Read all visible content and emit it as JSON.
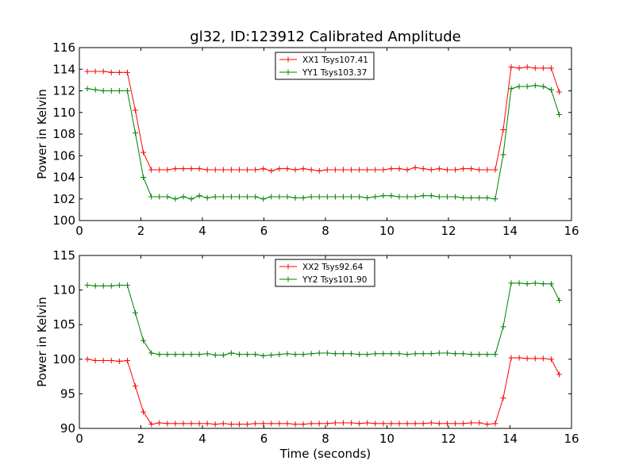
{
  "figure_title": "gl32, ID:123912 Calibrated Amplitude",
  "colors": {
    "xx": "#ff0000",
    "yy": "#008000"
  },
  "chart_data": [
    {
      "type": "line",
      "title": "gl32, ID:123912 Calibrated Amplitude",
      "xlabel": "",
      "ylabel": "Power in Kelvin",
      "xlim": [
        0,
        16
      ],
      "ylim": [
        100,
        116
      ],
      "xticks": [
        0,
        2,
        4,
        6,
        8,
        10,
        12,
        14,
        16
      ],
      "yticks": [
        100,
        102,
        104,
        106,
        108,
        110,
        112,
        114,
        116
      ],
      "grid": false,
      "legend_position": "top-center",
      "x": [
        0.26,
        0.52,
        0.78,
        1.04,
        1.3,
        1.56,
        1.82,
        2.08,
        2.34,
        2.6,
        2.86,
        3.12,
        3.38,
        3.64,
        3.9,
        4.16,
        4.42,
        4.68,
        4.94,
        5.2,
        5.46,
        5.72,
        5.98,
        6.24,
        6.5,
        6.76,
        7.02,
        7.28,
        7.54,
        7.8,
        8.06,
        8.32,
        8.58,
        8.84,
        9.1,
        9.36,
        9.62,
        9.88,
        10.14,
        10.4,
        10.66,
        10.92,
        11.18,
        11.44,
        11.7,
        11.96,
        12.22,
        12.48,
        12.74,
        13.0,
        13.26,
        13.52,
        13.78,
        14.04,
        14.3,
        14.56,
        14.82,
        15.08,
        15.34,
        15.6
      ],
      "series": [
        {
          "name": "XX1 Tsys107.41",
          "color": "#ff0000",
          "values": [
            113.8,
            113.8,
            113.8,
            113.7,
            113.7,
            113.7,
            110.2,
            106.3,
            104.7,
            104.7,
            104.7,
            104.8,
            104.8,
            104.8,
            104.8,
            104.7,
            104.7,
            104.7,
            104.7,
            104.7,
            104.7,
            104.7,
            104.8,
            104.6,
            104.8,
            104.8,
            104.7,
            104.8,
            104.7,
            104.6,
            104.7,
            104.7,
            104.7,
            104.7,
            104.7,
            104.7,
            104.7,
            104.7,
            104.8,
            104.8,
            104.7,
            104.9,
            104.8,
            104.7,
            104.8,
            104.7,
            104.7,
            104.8,
            104.8,
            104.7,
            104.7,
            104.7,
            108.4,
            114.2,
            114.1,
            114.2,
            114.1,
            114.1,
            114.1,
            111.9
          ]
        },
        {
          "name": "YY1 Tsys103.37",
          "color": "#008000",
          "values": [
            112.2,
            112.1,
            112.0,
            112.0,
            112.0,
            112.0,
            108.1,
            104.0,
            102.2,
            102.2,
            102.2,
            102.0,
            102.2,
            102.0,
            102.3,
            102.1,
            102.2,
            102.2,
            102.2,
            102.2,
            102.2,
            102.2,
            102.0,
            102.2,
            102.2,
            102.2,
            102.1,
            102.1,
            102.2,
            102.2,
            102.2,
            102.2,
            102.2,
            102.2,
            102.2,
            102.1,
            102.2,
            102.3,
            102.3,
            102.2,
            102.2,
            102.2,
            102.3,
            102.3,
            102.2,
            102.2,
            102.2,
            102.1,
            102.1,
            102.1,
            102.1,
            102.0,
            106.1,
            112.2,
            112.4,
            112.4,
            112.5,
            112.4,
            112.1,
            109.8
          ]
        }
      ]
    },
    {
      "type": "line",
      "title": "",
      "xlabel": "Time (seconds)",
      "ylabel": "Power in Kelvin",
      "xlim": [
        0,
        16
      ],
      "ylim": [
        90,
        115
      ],
      "xticks": [
        0,
        2,
        4,
        6,
        8,
        10,
        12,
        14,
        16
      ],
      "yticks": [
        90,
        95,
        100,
        105,
        110,
        115
      ],
      "grid": false,
      "legend_position": "top-center",
      "x": [
        0.26,
        0.52,
        0.78,
        1.04,
        1.3,
        1.56,
        1.82,
        2.08,
        2.34,
        2.6,
        2.86,
        3.12,
        3.38,
        3.64,
        3.9,
        4.16,
        4.42,
        4.68,
        4.94,
        5.2,
        5.46,
        5.72,
        5.98,
        6.24,
        6.5,
        6.76,
        7.02,
        7.28,
        7.54,
        7.8,
        8.06,
        8.32,
        8.58,
        8.84,
        9.1,
        9.36,
        9.62,
        9.88,
        10.14,
        10.4,
        10.66,
        10.92,
        11.18,
        11.44,
        11.7,
        11.96,
        12.22,
        12.48,
        12.74,
        13.0,
        13.26,
        13.52,
        13.78,
        14.04,
        14.3,
        14.56,
        14.82,
        15.08,
        15.34,
        15.6
      ],
      "series": [
        {
          "name": "XX2 Tsys92.64",
          "color": "#ff0000",
          "values": [
            100.0,
            99.8,
            99.8,
            99.8,
            99.7,
            99.8,
            96.1,
            92.4,
            90.6,
            90.8,
            90.7,
            90.7,
            90.7,
            90.7,
            90.7,
            90.7,
            90.6,
            90.7,
            90.6,
            90.6,
            90.6,
            90.7,
            90.7,
            90.7,
            90.7,
            90.7,
            90.6,
            90.6,
            90.7,
            90.7,
            90.7,
            90.8,
            90.8,
            90.8,
            90.7,
            90.8,
            90.7,
            90.7,
            90.7,
            90.7,
            90.7,
            90.7,
            90.7,
            90.8,
            90.7,
            90.7,
            90.7,
            90.7,
            90.8,
            90.8,
            90.6,
            90.7,
            94.4,
            100.2,
            100.2,
            100.1,
            100.1,
            100.1,
            100.0,
            97.8
          ]
        },
        {
          "name": "YY2 Tsys101.90",
          "color": "#008000",
          "values": [
            110.7,
            110.6,
            110.6,
            110.6,
            110.7,
            110.7,
            106.7,
            102.7,
            100.9,
            100.7,
            100.7,
            100.7,
            100.7,
            100.7,
            100.7,
            100.8,
            100.6,
            100.6,
            100.9,
            100.7,
            100.7,
            100.7,
            100.5,
            100.6,
            100.7,
            100.8,
            100.7,
            100.7,
            100.8,
            100.9,
            100.9,
            100.8,
            100.8,
            100.8,
            100.7,
            100.7,
            100.8,
            100.8,
            100.8,
            100.8,
            100.7,
            100.8,
            100.8,
            100.8,
            100.9,
            100.9,
            100.8,
            100.8,
            100.7,
            100.7,
            100.7,
            100.7,
            104.7,
            111.0,
            111.0,
            110.9,
            111.0,
            110.9,
            110.9,
            108.5
          ]
        }
      ]
    }
  ]
}
